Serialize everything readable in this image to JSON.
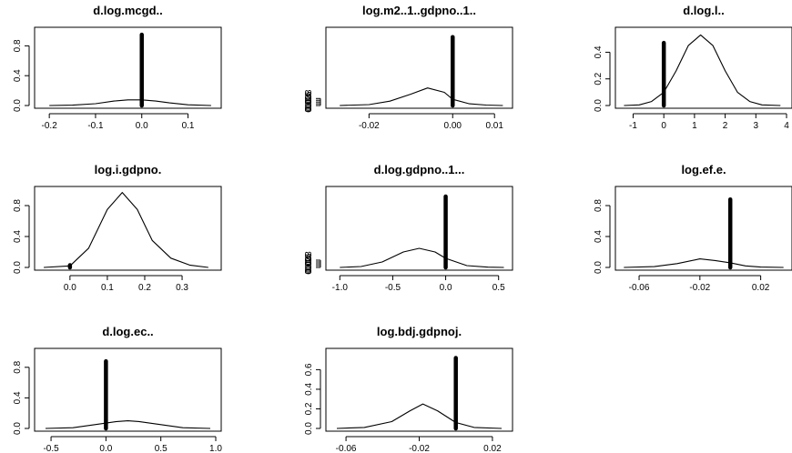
{
  "chart_data": [
    {
      "type": "line",
      "title": "d.log.mcgd..",
      "xlim": [
        -0.22,
        0.16
      ],
      "ylim": [
        0,
        1.0
      ],
      "xticks": [
        -0.2,
        -0.1,
        0.0,
        0.1
      ],
      "xtick_labels": [
        "-0.2",
        "-0.1",
        "0.0",
        "0.1"
      ],
      "yticks": [
        0.0,
        0.4,
        0.8
      ],
      "ytick_labels": [
        "0.0",
        "0.4",
        "0.8"
      ],
      "series": [
        {
          "x": [
            -0.2,
            -0.15,
            -0.1,
            -0.06,
            -0.03,
            0.0,
            0.03,
            0.06,
            0.1,
            0.15
          ],
          "y": [
            0.0,
            0.005,
            0.025,
            0.06,
            0.075,
            0.075,
            0.06,
            0.035,
            0.01,
            0.0
          ]
        }
      ],
      "spike": {
        "x": 0.0,
        "height": 0.95
      }
    },
    {
      "type": "line",
      "title": "log.m2..1..gdpno..1..",
      "xlim": [
        -0.029,
        0.013
      ],
      "ylim": [
        0,
        0.85
      ],
      "xticks": [
        -0.02,
        0.0,
        0.01
      ],
      "xtick_labels": [
        "-0.02",
        "0.00",
        "0.01"
      ],
      "yticks": [
        0.0,
        0.02,
        0.04,
        0.06,
        0.08
      ],
      "ytick_labels": [
        "0.0",
        "0.02",
        "0.04",
        "0.06",
        "0.08"
      ],
      "series": [
        {
          "x": [
            -0.027,
            -0.02,
            -0.015,
            -0.01,
            -0.006,
            -0.002,
            0.0,
            0.004,
            0.008,
            0.012
          ],
          "y": [
            0.0,
            0.01,
            0.05,
            0.13,
            0.2,
            0.15,
            0.07,
            0.02,
            0.005,
            0.0
          ]
        }
      ],
      "spike": {
        "x": 0.0,
        "height": 0.78
      }
    },
    {
      "type": "line",
      "title": "d.log.l..",
      "xlim": [
        -1.4,
        4.0
      ],
      "ylim": [
        0,
        0.56
      ],
      "xticks": [
        -1,
        0,
        1,
        2,
        3,
        4
      ],
      "xtick_labels": [
        "-1",
        "0",
        "1",
        "2",
        "3",
        "4"
      ],
      "yticks": [
        0.0,
        0.2,
        0.4
      ],
      "ytick_labels": [
        "0.0",
        "0.2",
        "0.4"
      ],
      "series": [
        {
          "x": [
            -1.3,
            -0.8,
            -0.4,
            0.0,
            0.4,
            0.8,
            1.2,
            1.6,
            2.0,
            2.4,
            2.8,
            3.2,
            3.8
          ],
          "y": [
            0.0,
            0.005,
            0.03,
            0.1,
            0.26,
            0.45,
            0.53,
            0.45,
            0.26,
            0.1,
            0.03,
            0.005,
            0.0
          ]
        }
      ],
      "spike": {
        "x": 0.0,
        "height": 0.47
      }
    },
    {
      "type": "line",
      "title": "log.i.gdpno.",
      "xlim": [
        -0.08,
        0.39
      ],
      "ylim": [
        0,
        1.0
      ],
      "xticks": [
        0.0,
        0.1,
        0.2,
        0.3
      ],
      "xtick_labels": [
        "0.0",
        "0.1",
        "0.2",
        "0.3"
      ],
      "yticks": [
        0.0,
        0.4,
        0.8
      ],
      "ytick_labels": [
        "0.0",
        "0.4",
        "0.8"
      ],
      "series": [
        {
          "x": [
            -0.07,
            0.0,
            0.05,
            0.1,
            0.14,
            0.18,
            0.22,
            0.27,
            0.32,
            0.37
          ],
          "y": [
            0.0,
            0.02,
            0.25,
            0.75,
            0.97,
            0.75,
            0.35,
            0.12,
            0.03,
            0.0
          ]
        }
      ],
      "spike": {
        "x": 0.0,
        "height": 0.03
      }
    },
    {
      "type": "line",
      "title": "d.log.gdpno..1...",
      "xlim": [
        -1.08,
        0.58
      ],
      "ylim": [
        0,
        0.85
      ],
      "xticks": [
        -1.0,
        -0.5,
        0.0,
        0.5
      ],
      "xtick_labels": [
        "-1.0",
        "-0.5",
        "0.0",
        "0.5"
      ],
      "yticks": [
        0.0,
        0.02,
        0.04,
        0.06,
        0.08
      ],
      "ytick_labels": [
        "0.0",
        "0.02",
        "0.04",
        "0.06",
        "0.08"
      ],
      "series": [
        {
          "x": [
            -1.0,
            -0.8,
            -0.6,
            -0.4,
            -0.25,
            -0.1,
            0.0,
            0.2,
            0.4,
            0.55
          ],
          "y": [
            0.0,
            0.01,
            0.06,
            0.17,
            0.21,
            0.17,
            0.1,
            0.02,
            0.003,
            0.0
          ]
        }
      ],
      "spike": {
        "x": 0.0,
        "height": 0.78
      }
    },
    {
      "type": "line",
      "title": "log.ef.e.",
      "xlim": [
        -0.072,
        0.037
      ],
      "ylim": [
        0,
        1.0
      ],
      "xticks": [
        -0.06,
        -0.02,
        0.02
      ],
      "xtick_labels": [
        "-0.06",
        "-0.02",
        "0.02"
      ],
      "yticks": [
        0.0,
        0.4,
        0.8
      ],
      "ytick_labels": [
        "0.0",
        "0.4",
        "0.8"
      ],
      "series": [
        {
          "x": [
            -0.07,
            -0.05,
            -0.035,
            -0.02,
            -0.01,
            0.0,
            0.01,
            0.02,
            0.035
          ],
          "y": [
            0.0,
            0.01,
            0.05,
            0.11,
            0.09,
            0.06,
            0.02,
            0.005,
            0.0
          ]
        }
      ],
      "spike": {
        "x": 0.0,
        "height": 0.88
      }
    },
    {
      "type": "line",
      "title": "d.log.ec..",
      "xlim": [
        -0.6,
        1.0
      ],
      "ylim": [
        0,
        1.0
      ],
      "xticks": [
        -0.5,
        0.0,
        0.5,
        1.0
      ],
      "xtick_labels": [
        "-0.5",
        "0.0",
        "0.5",
        "1.0"
      ],
      "yticks": [
        0.0,
        0.4,
        0.8
      ],
      "ytick_labels": [
        "0.0",
        "0.4",
        "0.8"
      ],
      "series": [
        {
          "x": [
            -0.55,
            -0.3,
            -0.1,
            0.1,
            0.2,
            0.3,
            0.5,
            0.7,
            0.95
          ],
          "y": [
            0.0,
            0.01,
            0.05,
            0.09,
            0.1,
            0.09,
            0.05,
            0.01,
            0.0
          ]
        }
      ],
      "spike": {
        "x": 0.0,
        "height": 0.88
      }
    },
    {
      "type": "line",
      "title": "log.bdj.gdpnoj.",
      "xlim": [
        -0.068,
        0.028
      ],
      "ylim": [
        0,
        0.78
      ],
      "xticks": [
        -0.06,
        -0.02,
        0.02
      ],
      "xtick_labels": [
        "-0.06",
        "-0.02",
        "0.02"
      ],
      "yticks": [
        0.0,
        0.2,
        0.4,
        0.6
      ],
      "ytick_labels": [
        "0.0",
        "0.2",
        "0.4",
        "0.6"
      ],
      "series": [
        {
          "x": [
            -0.065,
            -0.05,
            -0.035,
            -0.025,
            -0.018,
            -0.01,
            0.0,
            0.01,
            0.025
          ],
          "y": [
            0.0,
            0.01,
            0.07,
            0.18,
            0.25,
            0.18,
            0.06,
            0.01,
            0.0
          ]
        }
      ],
      "spike": {
        "x": 0.0,
        "height": 0.72
      }
    }
  ]
}
